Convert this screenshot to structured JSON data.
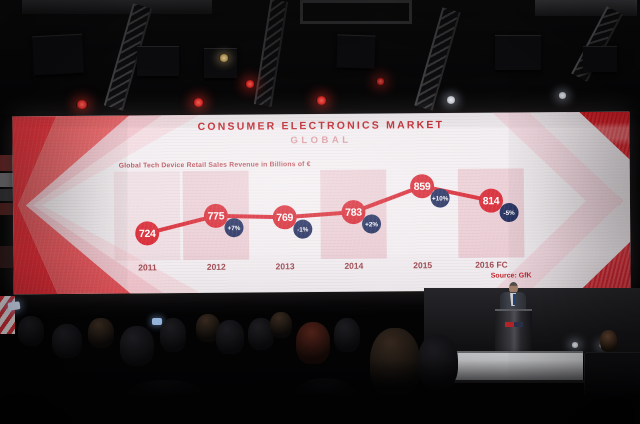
{
  "chart_data": {
    "type": "line",
    "title": "CONSUMER ELECTRONICS MARKET",
    "subtitle": "GLOBAL",
    "note": "Global Tech Device Retail Sales Revenue in Billions of €",
    "source": "Source: GfK",
    "categories": [
      "2011",
      "2012",
      "2013",
      "2014",
      "2015",
      "2016 FC"
    ],
    "values": [
      724,
      775,
      769,
      783,
      859,
      814
    ],
    "change_labels": [
      "",
      "+7%",
      "-1%",
      "+2%",
      "+10%",
      "-5%"
    ],
    "unit": "Billions of €",
    "ylim": [
      700,
      880
    ],
    "legend_position": "none",
    "grid": false,
    "highlighted_categories": [
      "2011",
      "2012",
      "2014",
      "2016 FC"
    ],
    "colors": {
      "line": "#d8232f",
      "value_marker": "#d8232f",
      "marker_text": "#ffffff",
      "change_badge": "#1e2a5c",
      "badge_text": "#ffffff",
      "title": "#c5232b",
      "subtitle": "#dc99a2",
      "caption": "#b8444e",
      "axis_label": "#a04b53",
      "band": "#dfa2af"
    }
  }
}
